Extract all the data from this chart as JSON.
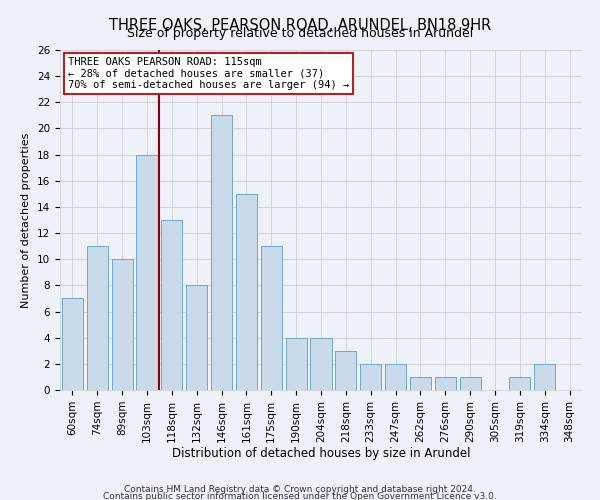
{
  "title": "THREE OAKS, PEARSON ROAD, ARUNDEL, BN18 9HR",
  "subtitle": "Size of property relative to detached houses in Arundel",
  "xlabel": "Distribution of detached houses by size in Arundel",
  "ylabel": "Number of detached properties",
  "bar_labels": [
    "60sqm",
    "74sqm",
    "89sqm",
    "103sqm",
    "118sqm",
    "132sqm",
    "146sqm",
    "161sqm",
    "175sqm",
    "190sqm",
    "204sqm",
    "218sqm",
    "233sqm",
    "247sqm",
    "262sqm",
    "276sqm",
    "290sqm",
    "305sqm",
    "319sqm",
    "334sqm",
    "348sqm"
  ],
  "bar_values": [
    7,
    11,
    10,
    18,
    13,
    8,
    21,
    15,
    11,
    4,
    4,
    3,
    2,
    2,
    1,
    1,
    1,
    0,
    1,
    2,
    0
  ],
  "bar_color": "#c9daea",
  "bar_edgecolor": "#6ea8cb",
  "ylim": [
    0,
    26
  ],
  "yticks": [
    0,
    2,
    4,
    6,
    8,
    10,
    12,
    14,
    16,
    18,
    20,
    22,
    24,
    26
  ],
  "vline_index": 4,
  "vline_color": "#8b0000",
  "annotation_title": "THREE OAKS PEARSON ROAD: 115sqm",
  "annotation_line1": "← 28% of detached houses are smaller (37)",
  "annotation_line2": "70% of semi-detached houses are larger (94) →",
  "annotation_box_facecolor": "#ffffff",
  "annotation_box_edgecolor": "#b22222",
  "footer1": "Contains HM Land Registry data © Crown copyright and database right 2024.",
  "footer2": "Contains public sector information licensed under the Open Government Licence v3.0.",
  "bg_color": "#eef2f8",
  "plot_bg_color": "#eef2f8",
  "title_fontsize": 10.5,
  "subtitle_fontsize": 9,
  "xlabel_fontsize": 8.5,
  "ylabel_fontsize": 8,
  "tick_fontsize": 7.5,
  "annotation_fontsize": 7.5,
  "footer_fontsize": 6.5
}
